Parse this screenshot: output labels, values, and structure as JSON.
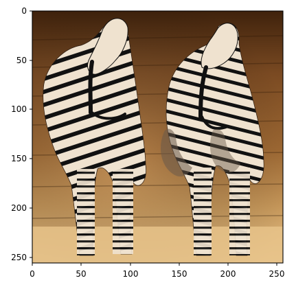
{
  "figure": {
    "image_description_name": "zebras",
    "x_axis": {
      "ticks": [
        0,
        50,
        100,
        150,
        200,
        250
      ],
      "range": [
        0,
        256
      ]
    },
    "y_axis": {
      "ticks": [
        0,
        50,
        100,
        150,
        200,
        250
      ],
      "range": [
        0,
        256
      ],
      "inverted": true
    },
    "frame_color": "#000000"
  },
  "colors": {
    "wall_dark": "#4a2a10",
    "wall_mid": "#8b5a2b",
    "wall_light": "#c08a4a",
    "floor": "#d9b27a",
    "zebra_light": "#efe2cf",
    "zebra_stripe": "#111111"
  }
}
